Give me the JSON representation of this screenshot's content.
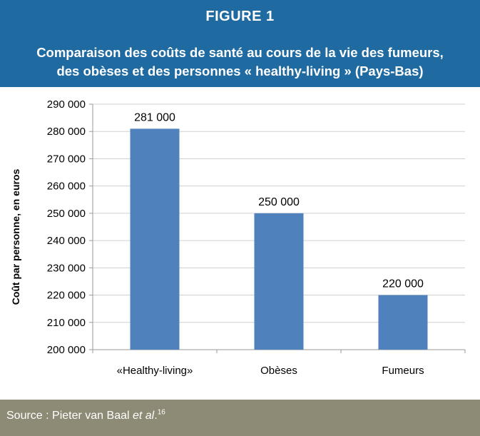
{
  "figure": {
    "label": "FIGURE 1",
    "title_line1": "Comparaison des coûts de santé au cours de la vie des fumeurs,",
    "title_line2": "des obèses et des personnes « healthy-living » (Pays-Bas)"
  },
  "footer": {
    "source_prefix": "Source : Pieter van Baal ",
    "source_author_suffix": "et al",
    "source_period": ".",
    "source_ref": "16"
  },
  "colors": {
    "header": "#1f6aa0",
    "bar": "#4f81bd",
    "footer": "#8d8a75"
  },
  "chart_data": {
    "type": "bar",
    "categories": [
      "«Healthy-living»",
      "Obèses",
      "Fumeurs"
    ],
    "values": [
      281000,
      250000,
      220000
    ],
    "data_labels": [
      "281 000",
      "250 000",
      "220 000"
    ],
    "ylabel": "Coût par personne, en euros",
    "xlabel": "",
    "ylim": [
      200000,
      290000
    ],
    "yticks": [
      200000,
      210000,
      220000,
      230000,
      240000,
      250000,
      260000,
      270000,
      280000,
      290000
    ],
    "ytick_labels": [
      "200 000",
      "210 000",
      "220 000",
      "230 000",
      "240 000",
      "250 000",
      "260 000",
      "270 000",
      "280 000",
      "290 000"
    ],
    "grid": true,
    "legend": "none"
  }
}
